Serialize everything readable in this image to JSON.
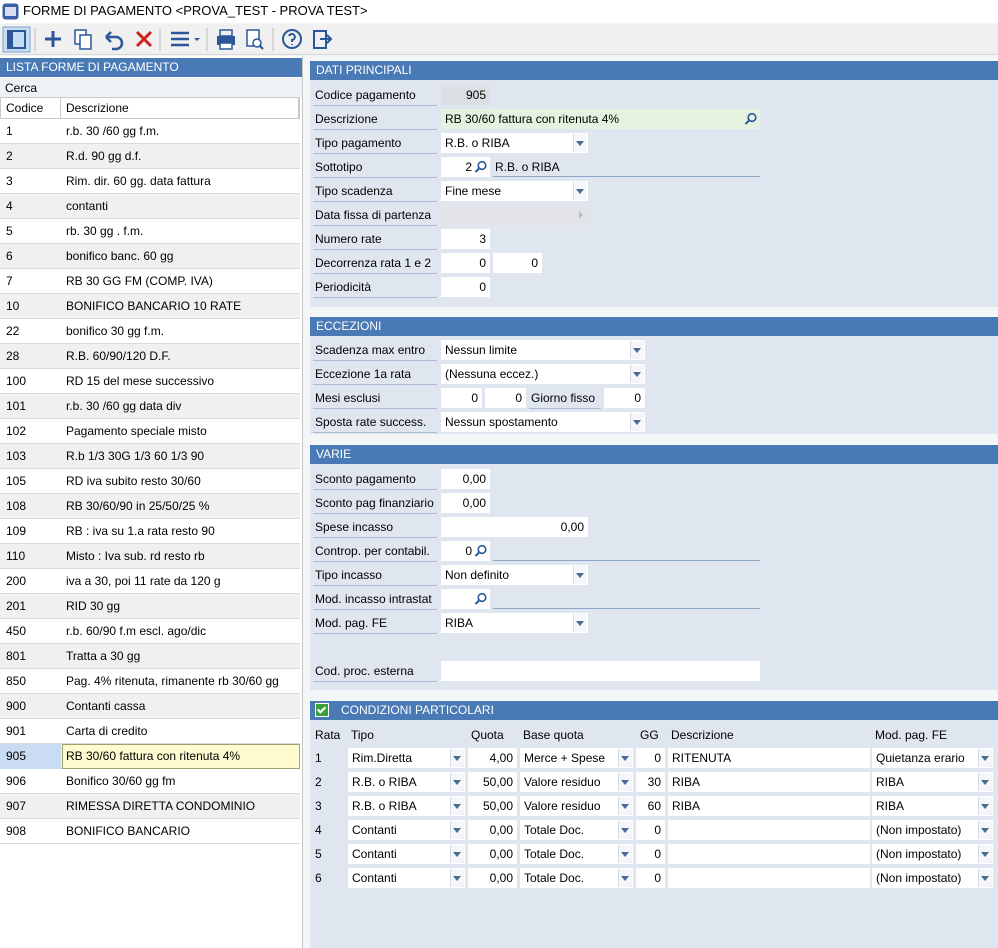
{
  "window": {
    "title": "FORME DI PAGAMENTO <PROVA_TEST - PROVA TEST>"
  },
  "list": {
    "title": "LISTA FORME DI PAGAMENTO",
    "search": "Cerca",
    "columns": [
      "Codice",
      "Descrizione"
    ],
    "rows": [
      {
        "code": "1",
        "description": "r.b. 30 /60 gg f.m."
      },
      {
        "code": "2",
        "description": "R.d. 90 gg d.f."
      },
      {
        "code": "3",
        "description": "Rim. dir. 60 gg. data fattura"
      },
      {
        "code": "4",
        "description": "contanti"
      },
      {
        "code": "5",
        "description": "rb. 30 gg . f.m."
      },
      {
        "code": "6",
        "description": "bonifico banc. 60 gg"
      },
      {
        "code": "7",
        "description": "RB 30 GG FM (COMP. IVA)"
      },
      {
        "code": "10",
        "description": "BONIFICO BANCARIO 10 RATE"
      },
      {
        "code": "22",
        "description": "bonifico 30 gg f.m."
      },
      {
        "code": "28",
        "description": "R.B. 60/90/120 D.F."
      },
      {
        "code": "100",
        "description": "RD 15 del mese successivo"
      },
      {
        "code": "101",
        "description": "r.b. 30 /60 gg data div"
      },
      {
        "code": "102",
        "description": "Pagamento speciale misto"
      },
      {
        "code": "103",
        "description": "R.b 1/3 30G 1/3 60 1/3 90"
      },
      {
        "code": "105",
        "description": "RD iva subito resto 30/60"
      },
      {
        "code": "108",
        "description": "RB 30/60/90 in 25/50/25 %"
      },
      {
        "code": "109",
        "description": "RB : iva su 1.a rata resto 90"
      },
      {
        "code": "110",
        "description": "Misto : Iva sub. rd resto rb"
      },
      {
        "code": "200",
        "description": "iva a 30, poi 11 rate da 120 g"
      },
      {
        "code": "201",
        "description": "RID 30 gg"
      },
      {
        "code": "450",
        "description": "r.b. 60/90 f.m escl. ago/dic"
      },
      {
        "code": "801",
        "description": "Tratta a 30 gg"
      },
      {
        "code": "850",
        "description": "Pag. 4% ritenuta, rimanente rb 30/60 gg"
      },
      {
        "code": "900",
        "description": "Contanti cassa"
      },
      {
        "code": "901",
        "description": "Carta di credito"
      },
      {
        "code": "905",
        "description": "RB 30/60 fattura con ritenuta 4%",
        "selected": true
      },
      {
        "code": "906",
        "description": "Bonifico 30/60 gg fm"
      },
      {
        "code": "907",
        "description": "RIMESSA DIRETTA CONDOMINIO"
      },
      {
        "code": "908",
        "description": "BONIFICO BANCARIO"
      }
    ]
  },
  "dati_principali": {
    "title": "DATI PRINCIPALI",
    "fields": [
      {
        "label": "Codice pagamento",
        "value": "905"
      },
      {
        "label": "Descrizione",
        "value": "RB 30/60 fattura con ritenuta 4%"
      },
      {
        "label": "Tipo pagamento",
        "value": "R.B. o RIBA"
      },
      {
        "label": "Sottotipo",
        "value": "2",
        "description": "R.B. o RIBA"
      },
      {
        "label": "Tipo scadenza",
        "value": "Fine mese"
      },
      {
        "label": "Data fissa di partenza"
      },
      {
        "label": "Numero rate",
        "value": "3"
      },
      {
        "label": "Decorrenza rata 1 e 2",
        "values": [
          "0",
          "0"
        ]
      },
      {
        "label": "Periodicità",
        "value": "0"
      }
    ]
  },
  "eccezioni": {
    "title": "ECCEZIONI",
    "fields": [
      {
        "label": "Scadenza max entro",
        "value": "Nessun limite"
      },
      {
        "label": "Eccezione 1a rata",
        "value": "(Nessuna eccez.)"
      },
      {
        "label": "Mesi esclusi",
        "values": [
          "0",
          "0"
        ],
        "giorno_fisso": {
          "label": "Giorno fisso",
          "value": "0"
        }
      },
      {
        "label": "Sposta rate success.",
        "value": "Nessun spostamento"
      }
    ]
  },
  "varie": {
    "title": "VARIE",
    "fields": [
      {
        "label": "Sconto pagamento",
        "value": "0,00"
      },
      {
        "label": "Sconto pag finanziario",
        "value": "0,00"
      },
      {
        "label": "Spese incasso",
        "value": "0,00"
      },
      {
        "label": "Controp. per contabil.",
        "value": "0"
      },
      {
        "label": "Tipo incasso",
        "value": "Non definito"
      },
      {
        "label": "Mod. incasso intrastat"
      },
      {
        "label": "Mod. pag. FE",
        "value": "RIBA"
      },
      {
        "label": "Cod. proc. esterna"
      }
    ]
  },
  "condizioni": {
    "title": "CONDIZIONI PARTICOLARI",
    "enabled": true,
    "columns": [
      "Rata",
      "Tipo",
      "Quota",
      "Base quota",
      "GG",
      "Descrizione",
      "Mod. pag. FE"
    ],
    "rows": [
      {
        "rata": 1,
        "tipo": "Rim.Diretta",
        "quota": "4,00",
        "base_quota": "Merce + Spese",
        "gg": 0,
        "descrizione": "RITENUTA",
        "mod_pag_fe": "Quietanza erario"
      },
      {
        "rata": 2,
        "tipo": "R.B. o RIBA",
        "quota": "50,00",
        "base_quota": "Valore residuo",
        "gg": 30,
        "descrizione": "RIBA",
        "mod_pag_fe": "RIBA"
      },
      {
        "rata": 3,
        "tipo": "R.B. o RIBA",
        "quota": "50,00",
        "base_quota": "Valore residuo",
        "gg": 60,
        "descrizione": "RIBA",
        "mod_pag_fe": "RIBA"
      },
      {
        "rata": 4,
        "tipo": "Contanti",
        "quota": "0,00",
        "base_quota": "Totale Doc.",
        "gg": 0,
        "descrizione": null,
        "mod_pag_fe": "(Non impostato)"
      },
      {
        "rata": 5,
        "tipo": "Contanti",
        "quota": "0,00",
        "base_quota": "Totale Doc.",
        "gg": 0,
        "descrizione": null,
        "mod_pag_fe": "(Non impostato)"
      },
      {
        "rata": 6,
        "tipo": "Contanti",
        "quota": "0,00",
        "base_quota": "Totale Doc.",
        "gg": 0,
        "descrizione": null,
        "mod_pag_fe": "(Non impostato)"
      }
    ]
  }
}
